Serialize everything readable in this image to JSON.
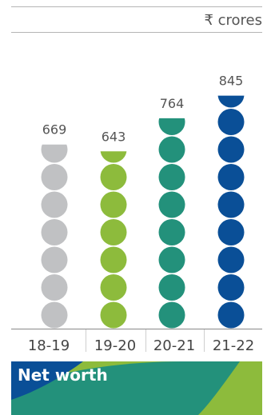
{
  "chart_data": {
    "type": "bar",
    "unit": "₹ crores",
    "categories": [
      "18-19",
      "19-20",
      "20-21",
      "21-22"
    ],
    "values": [
      669,
      643,
      764,
      845
    ],
    "colors": [
      "#c0c1c3",
      "#8dbb3c",
      "#23917b",
      "#0a4f97"
    ],
    "title": "Net worth",
    "xlabel": "",
    "ylabel": ""
  },
  "banner": {
    "colors": [
      "#0a4f97",
      "#23917b",
      "#8dbb3c"
    ]
  }
}
